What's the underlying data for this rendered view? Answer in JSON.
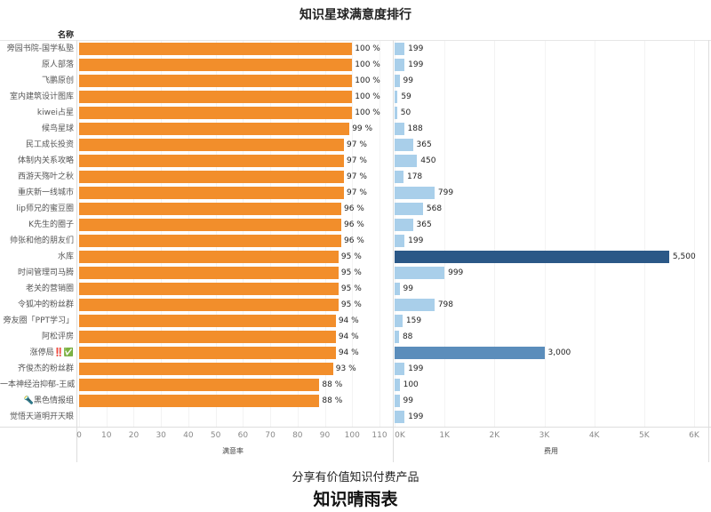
{
  "chart_data": {
    "type": "bar",
    "title": "知识星球满意度排行",
    "row_header": "名称",
    "categories": [
      "旁园书院-国学私塾",
      "原人部落",
      "飞鹏原创",
      "室内建筑设计图库",
      "kiwei占星",
      "候鸟星球",
      "民工成长投资",
      "体制内关系攻略",
      "西游天殇叶之秋",
      "重庆新一线城市",
      "lip师兄的蜜豆圈",
      "K先生的圈子",
      "帅张和他的朋友们",
      "水库",
      "时间管理司马腾",
      "老关的营销圈",
      "令狐冲的粉丝群",
      "旁友圈「PPT学习」",
      "阿松评房",
      "涨停局‼️✅",
      "齐俊杰的粉丝群",
      "一本神经治抑郁-王威",
      "🔦黑色情报组",
      "觉悟天道明开天眼"
    ],
    "series": [
      {
        "name": "满意率",
        "unit": "%",
        "values": [
          100,
          100,
          100,
          100,
          100,
          99,
          97,
          97,
          97,
          97,
          96,
          96,
          96,
          95,
          95,
          95,
          95,
          94,
          94,
          94,
          93,
          88,
          88,
          null
        ],
        "xlim": [
          0,
          110
        ],
        "ticks": [
          "0",
          "10",
          "20",
          "30",
          "40",
          "50",
          "60",
          "70",
          "80",
          "90",
          "100",
          "110"
        ],
        "color": "#f28e2b"
      },
      {
        "name": "费用",
        "values": [
          199,
          199,
          99,
          59,
          50,
          188,
          365,
          450,
          178,
          799,
          568,
          365,
          199,
          5500,
          999,
          99,
          798,
          159,
          88,
          3000,
          199,
          100,
          99,
          199
        ],
        "labels": [
          "199",
          "199",
          "99",
          "59",
          "50",
          "188",
          "365",
          "450",
          "178",
          "799",
          "568",
          "365",
          "199",
          "5,500",
          "999",
          "99",
          "798",
          "159",
          "88",
          "3,000",
          "199",
          "100",
          "99",
          "199"
        ],
        "xlim": [
          0,
          6000
        ],
        "ticks": [
          "0K",
          "1K",
          "2K",
          "3K",
          "4K",
          "5K",
          "6K"
        ],
        "color_scale": [
          "#a9cfea",
          "#5b8dbb",
          "#2b5887"
        ]
      }
    ]
  },
  "footer": {
    "subtitle": "分享有价值知识付费产品",
    "brand": "知识晴雨表"
  }
}
